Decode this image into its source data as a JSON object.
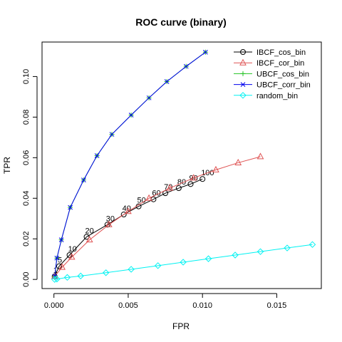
{
  "chart_data": {
    "type": "line",
    "title": "ROC curve (binary)",
    "xlabel": "FPR",
    "ylabel": "TPR",
    "xlim": [
      -0.0008,
      0.018
    ],
    "ylim": [
      -0.0045,
      0.117
    ],
    "x_ticks": [
      0.0,
      0.005,
      0.01,
      0.015
    ],
    "x_tick_labels": [
      "0.000",
      "0.005",
      "0.010",
      "0.015"
    ],
    "y_ticks": [
      0.0,
      0.02,
      0.04,
      0.06,
      0.08,
      0.1
    ],
    "y_tick_labels": [
      "0.00",
      "0.02",
      "0.04",
      "0.06",
      "0.08",
      "0.10"
    ],
    "grid": false,
    "legend_position": "top-right",
    "series": [
      {
        "name": "IBCF_cos_bin",
        "color": "#000000",
        "marker": "circle",
        "x": [
          5e-05,
          0.00035,
          0.00105,
          0.0022,
          0.0036,
          0.0047,
          0.0057,
          0.0067,
          0.0075,
          0.0084,
          0.0092,
          0.01
        ],
        "y": [
          0.0015,
          0.0065,
          0.012,
          0.021,
          0.027,
          0.032,
          0.036,
          0.0395,
          0.0425,
          0.045,
          0.047,
          0.0495
        ],
        "point_labels": [
          "1",
          "5",
          "10",
          "20",
          "30",
          "40",
          "50",
          "60",
          "70",
          "80",
          "90",
          "100"
        ]
      },
      {
        "name": "IBCF_cor_bin",
        "color": "#df5353",
        "marker": "triangle",
        "x": [
          5e-05,
          0.00055,
          0.0012,
          0.0024,
          0.0037,
          0.005,
          0.0064,
          0.0078,
          0.0094,
          0.0109,
          0.0124,
          0.0139
        ],
        "y": [
          0.0015,
          0.006,
          0.011,
          0.0195,
          0.027,
          0.0335,
          0.04,
          0.045,
          0.05,
          0.054,
          0.0575,
          0.0605
        ]
      },
      {
        "name": "UBCF_cos_bin",
        "color": "#22c222",
        "marker": "plus",
        "x": [
          5e-05,
          0.0002,
          0.0005,
          0.0011,
          0.002,
          0.0029,
          0.0039,
          0.0052,
          0.0064,
          0.0076,
          0.0089,
          0.0102
        ],
        "y": [
          0.0015,
          0.0105,
          0.0195,
          0.0355,
          0.049,
          0.061,
          0.0715,
          0.081,
          0.0895,
          0.0975,
          0.105,
          0.112
        ]
      },
      {
        "name": "UBCF_corr_bin",
        "color": "#0000ee",
        "marker": "x",
        "x": [
          5e-05,
          0.0002,
          0.0005,
          0.0011,
          0.002,
          0.0029,
          0.0039,
          0.0052,
          0.0064,
          0.0076,
          0.0089,
          0.0102
        ],
        "y": [
          0.0015,
          0.0105,
          0.0195,
          0.0355,
          0.049,
          0.061,
          0.0715,
          0.081,
          0.0895,
          0.0975,
          0.105,
          0.112
        ]
      },
      {
        "name": "random_bin",
        "color": "#00f2f2",
        "marker": "diamond",
        "x": [
          5e-05,
          0.0002,
          0.0009,
          0.0018,
          0.0035,
          0.0052,
          0.007,
          0.0087,
          0.0104,
          0.0122,
          0.0139,
          0.0157,
          0.0174
        ],
        "y": [
          0.0,
          0.0002,
          0.001,
          0.0017,
          0.0033,
          0.005,
          0.0068,
          0.0085,
          0.0102,
          0.012,
          0.0137,
          0.0155,
          0.0172
        ]
      }
    ]
  }
}
